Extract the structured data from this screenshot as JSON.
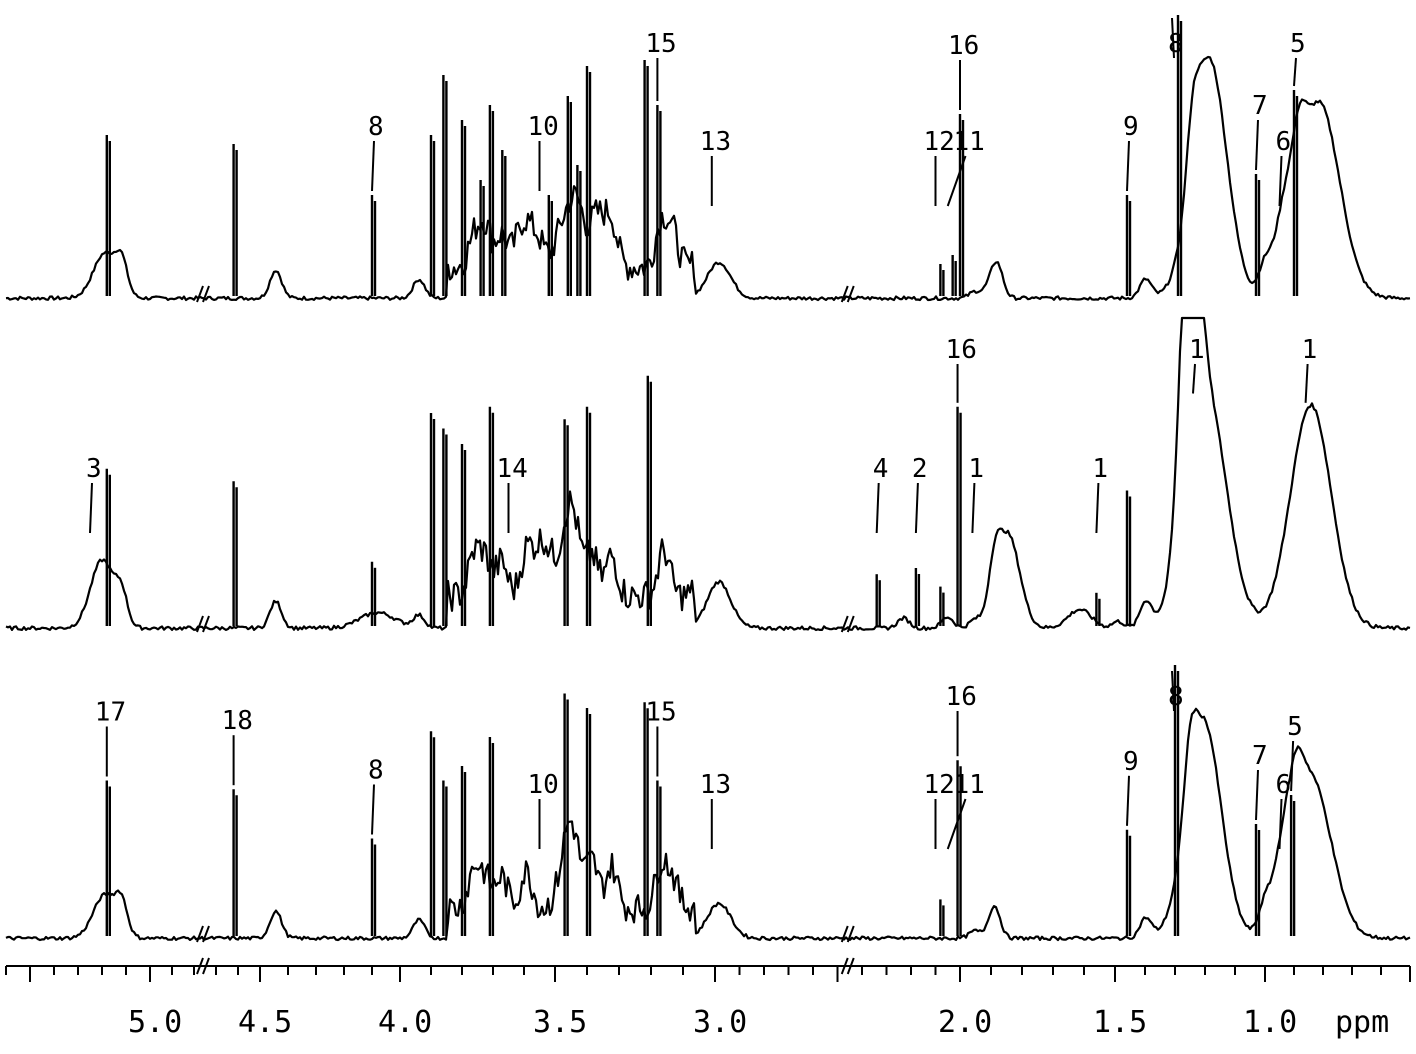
{
  "chart_data": {
    "type": "line",
    "title": "",
    "xlabel": "ppm",
    "ylabel": "",
    "x_reversed": true,
    "xlim": [
      5.6,
      0.5
    ],
    "axis_breaks": [
      4.75,
      2.45
    ],
    "x_ticks": [
      {
        "x": 5.0,
        "label": "5.0"
      },
      {
        "x": 4.5,
        "label": "4.5"
      },
      {
        "x": 4.0,
        "label": "4.0"
      },
      {
        "x": 3.5,
        "label": "3.5"
      },
      {
        "x": 3.0,
        "label": "3.0"
      },
      {
        "x": 2.0,
        "label": "2.0"
      },
      {
        "x": 1.5,
        "label": "1.5"
      },
      {
        "x": 1.0,
        "label": "1.0"
      }
    ],
    "series": [
      {
        "peaks": [
          {
            "ppm": 5.24,
            "h": 0.15,
            "w": 0.02
          },
          {
            "ppm": 5.18,
            "h": 0.55,
            "w": 0.004
          },
          {
            "ppm": 4.62,
            "h": 0.52,
            "w": 0.004
          },
          {
            "ppm": 4.1,
            "h": 0.35,
            "w": 0.004
          },
          {
            "ppm": 3.9,
            "h": 0.55,
            "w": 0.005
          },
          {
            "ppm": 3.86,
            "h": 0.75,
            "w": 0.005
          },
          {
            "ppm": 3.8,
            "h": 0.6,
            "w": 0.005
          },
          {
            "ppm": 3.74,
            "h": 0.4,
            "w": 0.006
          },
          {
            "ppm": 3.71,
            "h": 0.65,
            "w": 0.005
          },
          {
            "ppm": 3.67,
            "h": 0.5,
            "w": 0.006
          },
          {
            "ppm": 3.55,
            "h": 0.2,
            "w": 0.02
          },
          {
            "ppm": 3.52,
            "h": 0.35,
            "w": 0.006
          },
          {
            "ppm": 3.46,
            "h": 0.68,
            "w": 0.005
          },
          {
            "ppm": 3.43,
            "h": 0.45,
            "w": 0.006
          },
          {
            "ppm": 3.4,
            "h": 0.78,
            "w": 0.005
          },
          {
            "ppm": 3.22,
            "h": 0.8,
            "w": 0.006
          },
          {
            "ppm": 3.18,
            "h": 0.65,
            "w": 0.008
          },
          {
            "ppm": 3.01,
            "h": 0.12,
            "w": 0.02
          },
          {
            "ppm": 2.08,
            "h": 0.12,
            "w": 0.008
          },
          {
            "ppm": 2.03,
            "h": 0.15,
            "w": 0.008
          },
          {
            "ppm": 2.0,
            "h": 0.62,
            "w": 0.006
          },
          {
            "ppm": 1.46,
            "h": 0.35,
            "w": 0.004
          },
          {
            "ppm": 1.29,
            "h": 0.95,
            "w": 0.006
          },
          {
            "ppm": 1.23,
            "h": 0.8,
            "w": 0.03
          },
          {
            "ppm": 1.03,
            "h": 0.42,
            "w": 0.004
          },
          {
            "ppm": 0.95,
            "h": 0.22,
            "w": 0.02
          },
          {
            "ppm": 0.9,
            "h": 0.7,
            "w": 0.004
          },
          {
            "ppm": 0.83,
            "h": 0.65,
            "w": 0.035
          }
        ],
        "labels": [
          {
            "text": "8",
            "ppm": 4.1
          },
          {
            "text": "10",
            "ppm": 3.55
          },
          {
            "text": "15",
            "ppm": 3.18
          },
          {
            "text": "13",
            "ppm": 3.01
          },
          {
            "text": "12",
            "ppm": 2.1
          },
          {
            "text": "11",
            "ppm": 2.05
          },
          {
            "text": "16",
            "ppm": 2.0
          },
          {
            "text": "9",
            "ppm": 1.46
          },
          {
            "text": "8",
            "ppm": 1.31
          },
          {
            "text": "7",
            "ppm": 1.03
          },
          {
            "text": "6",
            "ppm": 0.95
          },
          {
            "text": "5",
            "ppm": 0.9
          }
        ]
      },
      {
        "peaks": [
          {
            "ppm": 5.25,
            "h": 0.22,
            "w": 0.02
          },
          {
            "ppm": 5.18,
            "h": 0.52,
            "w": 0.004
          },
          {
            "ppm": 4.62,
            "h": 0.48,
            "w": 0.004
          },
          {
            "ppm": 4.25,
            "h": 0.05,
            "w": 0.03
          },
          {
            "ppm": 4.1,
            "h": 0.22,
            "w": 0.004
          },
          {
            "ppm": 3.9,
            "h": 0.7,
            "w": 0.005
          },
          {
            "ppm": 3.86,
            "h": 0.65,
            "w": 0.005
          },
          {
            "ppm": 3.8,
            "h": 0.6,
            "w": 0.005
          },
          {
            "ppm": 3.71,
            "h": 0.72,
            "w": 0.005
          },
          {
            "ppm": 3.65,
            "h": 0.18,
            "w": 0.015
          },
          {
            "ppm": 3.55,
            "h": 0.3,
            "w": 0.015
          },
          {
            "ppm": 3.47,
            "h": 0.68,
            "w": 0.005
          },
          {
            "ppm": 3.4,
            "h": 0.72,
            "w": 0.005
          },
          {
            "ppm": 3.21,
            "h": 0.82,
            "w": 0.007
          },
          {
            "ppm": 3.01,
            "h": 0.15,
            "w": 0.02
          },
          {
            "ppm": 2.34,
            "h": 0.18,
            "w": 0.006
          },
          {
            "ppm": 2.18,
            "h": 0.2,
            "w": 0.01
          },
          {
            "ppm": 2.08,
            "h": 0.14,
            "w": 0.01
          },
          {
            "ppm": 2.01,
            "h": 0.72,
            "w": 0.006
          },
          {
            "ppm": 1.96,
            "h": 0.3,
            "w": 0.02
          },
          {
            "ppm": 1.7,
            "h": 0.06,
            "w": 0.02
          },
          {
            "ppm": 1.56,
            "h": 0.12,
            "w": 0.01
          },
          {
            "ppm": 1.46,
            "h": 0.45,
            "w": 0.004
          },
          {
            "ppm": 1.3,
            "h": 1.05,
            "w": 0.015
          },
          {
            "ppm": 1.24,
            "h": 0.75,
            "w": 0.035
          },
          {
            "ppm": 0.86,
            "h": 0.72,
            "w": 0.035
          }
        ],
        "labels": [
          {
            "text": "3",
            "ppm": 5.25
          },
          {
            "text": "14",
            "ppm": 3.65
          },
          {
            "text": "4",
            "ppm": 2.34
          },
          {
            "text": "2",
            "ppm": 2.18
          },
          {
            "text": "16",
            "ppm": 2.01
          },
          {
            "text": "1",
            "ppm": 1.96
          },
          {
            "text": "1",
            "ppm": 1.56
          },
          {
            "text": "1",
            "ppm": 1.24
          },
          {
            "text": "1",
            "ppm": 0.86
          }
        ]
      },
      {
        "peaks": [
          {
            "ppm": 5.24,
            "h": 0.15,
            "w": 0.02
          },
          {
            "ppm": 5.18,
            "h": 0.55,
            "w": 0.004
          },
          {
            "ppm": 4.62,
            "h": 0.52,
            "w": 0.004
          },
          {
            "ppm": 4.1,
            "h": 0.35,
            "w": 0.004
          },
          {
            "ppm": 3.9,
            "h": 0.72,
            "w": 0.005
          },
          {
            "ppm": 3.86,
            "h": 0.55,
            "w": 0.005
          },
          {
            "ppm": 3.8,
            "h": 0.6,
            "w": 0.005
          },
          {
            "ppm": 3.71,
            "h": 0.7,
            "w": 0.005
          },
          {
            "ppm": 3.55,
            "h": 0.3,
            "w": 0.015
          },
          {
            "ppm": 3.47,
            "h": 0.85,
            "w": 0.005
          },
          {
            "ppm": 3.4,
            "h": 0.8,
            "w": 0.005
          },
          {
            "ppm": 3.22,
            "h": 0.82,
            "w": 0.006
          },
          {
            "ppm": 3.18,
            "h": 0.55,
            "w": 0.008
          },
          {
            "ppm": 3.01,
            "h": 0.12,
            "w": 0.02
          },
          {
            "ppm": 2.08,
            "h": 0.14,
            "w": 0.008
          },
          {
            "ppm": 2.01,
            "h": 0.62,
            "w": 0.006
          },
          {
            "ppm": 1.46,
            "h": 0.38,
            "w": 0.004
          },
          {
            "ppm": 1.3,
            "h": 1.0,
            "w": 0.008
          },
          {
            "ppm": 1.25,
            "h": 0.75,
            "w": 0.03
          },
          {
            "ppm": 1.03,
            "h": 0.4,
            "w": 0.004
          },
          {
            "ppm": 0.95,
            "h": 0.2,
            "w": 0.02
          },
          {
            "ppm": 0.91,
            "h": 0.5,
            "w": 0.004
          },
          {
            "ppm": 0.86,
            "h": 0.55,
            "w": 0.035
          }
        ],
        "labels": [
          {
            "text": "17",
            "ppm": 5.18
          },
          {
            "text": "18",
            "ppm": 4.62
          },
          {
            "text": "8",
            "ppm": 4.1
          },
          {
            "text": "10",
            "ppm": 3.55
          },
          {
            "text": "15",
            "ppm": 3.18
          },
          {
            "text": "13",
            "ppm": 3.01
          },
          {
            "text": "12",
            "ppm": 2.1
          },
          {
            "text": "11",
            "ppm": 2.05
          },
          {
            "text": "16",
            "ppm": 2.01
          },
          {
            "text": "9",
            "ppm": 1.46
          },
          {
            "text": "8",
            "ppm": 1.31
          },
          {
            "text": "7",
            "ppm": 1.03
          },
          {
            "text": "6",
            "ppm": 0.95
          },
          {
            "text": "5",
            "ppm": 0.91
          }
        ]
      }
    ]
  }
}
